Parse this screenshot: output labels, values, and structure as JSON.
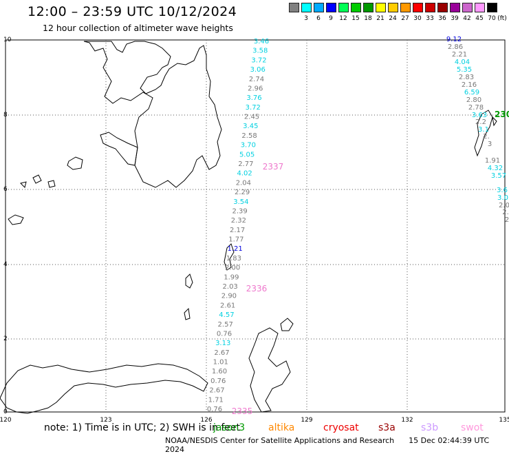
{
  "header": {
    "title": "12:00 – 23:59 UTC 10/12/2024",
    "subtitle": "12 hour collection of altimeter wave heights"
  },
  "legend": {
    "unit": "(ft)",
    "bins": [
      {
        "label": "",
        "color": "#808080"
      },
      {
        "label": "3",
        "color": "#00ffff"
      },
      {
        "label": "6",
        "color": "#00aaff"
      },
      {
        "label": "9",
        "color": "#0000ff"
      },
      {
        "label": "12",
        "color": "#00ff55"
      },
      {
        "label": "15",
        "color": "#00cc00"
      },
      {
        "label": "18",
        "color": "#009900"
      },
      {
        "label": "21",
        "color": "#ffff00"
      },
      {
        "label": "24",
        "color": "#ffcc00"
      },
      {
        "label": "27",
        "color": "#ff9900"
      },
      {
        "label": "30",
        "color": "#ff0000"
      },
      {
        "label": "33",
        "color": "#cc0000"
      },
      {
        "label": "36",
        "color": "#990000"
      },
      {
        "label": "39",
        "color": "#990099"
      },
      {
        "label": "42",
        "color": "#cc66cc"
      },
      {
        "label": "45",
        "color": "#ff99ff"
      },
      {
        "label": "70",
        "color": "#000000"
      }
    ]
  },
  "axes": {
    "lat_ticks": [
      "10",
      "8",
      "6",
      "4",
      "2",
      "0"
    ],
    "lon_ticks": [
      "120",
      "123",
      "126",
      "129",
      "132",
      "135"
    ]
  },
  "map_colors": {
    "grey": "#777777",
    "cyan": "#00d0e0",
    "blue": "#0000dd",
    "green": "#009900",
    "pink": "#ee77cc"
  },
  "tracks": [
    {
      "id": "track-west",
      "labels": [
        {
          "v": "3.46",
          "c": "cyan"
        },
        {
          "v": "3.58",
          "c": "cyan"
        },
        {
          "v": "3.72",
          "c": "cyan"
        },
        {
          "v": "3.06",
          "c": "cyan"
        },
        {
          "v": "2.74",
          "c": "grey"
        },
        {
          "v": "2.96",
          "c": "grey"
        },
        {
          "v": "3.76",
          "c": "cyan"
        },
        {
          "v": "3.72",
          "c": "cyan"
        },
        {
          "v": "2.45",
          "c": "grey"
        },
        {
          "v": "3.45",
          "c": "cyan"
        },
        {
          "v": "2.58",
          "c": "grey"
        },
        {
          "v": "3.70",
          "c": "cyan"
        },
        {
          "v": "5.05",
          "c": "cyan"
        },
        {
          "v": "2.77",
          "c": "grey"
        },
        {
          "v": "4.02",
          "c": "cyan"
        },
        {
          "v": "2.04",
          "c": "grey"
        },
        {
          "v": "2.29",
          "c": "grey"
        },
        {
          "v": "3.54",
          "c": "cyan"
        },
        {
          "v": "2.39",
          "c": "grey"
        },
        {
          "v": "2.32",
          "c": "grey"
        },
        {
          "v": "2.17",
          "c": "grey"
        },
        {
          "v": "1.77",
          "c": "grey"
        },
        {
          "v": "1.21",
          "c": "blue"
        },
        {
          "v": "1.83",
          "c": "grey"
        },
        {
          "v": "2.00",
          "c": "grey"
        },
        {
          "v": "1.99",
          "c": "grey"
        },
        {
          "v": "2.03",
          "c": "grey"
        },
        {
          "v": "2.90",
          "c": "grey"
        },
        {
          "v": "2.61",
          "c": "grey"
        },
        {
          "v": "4.57",
          "c": "cyan"
        },
        {
          "v": "2.57",
          "c": "grey"
        },
        {
          "v": "0.76",
          "c": "grey"
        },
        {
          "v": "3.13",
          "c": "cyan"
        },
        {
          "v": "2.67",
          "c": "grey"
        },
        {
          "v": "1.01",
          "c": "grey"
        },
        {
          "v": "1.60",
          "c": "grey"
        },
        {
          "v": "0.76",
          "c": "grey"
        },
        {
          "v": "2.67",
          "c": "grey"
        },
        {
          "v": "1.71",
          "c": "grey"
        },
        {
          "v": "0.76",
          "c": "grey"
        }
      ],
      "time_labels": [
        {
          "v": "2337",
          "c": "pink"
        },
        {
          "v": "2336",
          "c": "pink"
        },
        {
          "v": "2335",
          "c": "pink"
        }
      ]
    },
    {
      "id": "track-east",
      "labels": [
        {
          "v": "9.12",
          "c": "blue"
        },
        {
          "v": "2.86",
          "c": "grey"
        },
        {
          "v": "2.21",
          "c": "grey"
        },
        {
          "v": "4.04",
          "c": "cyan"
        },
        {
          "v": "5.35",
          "c": "cyan"
        },
        {
          "v": "2.83",
          "c": "grey"
        },
        {
          "v": "2.16",
          "c": "grey"
        },
        {
          "v": "6.59",
          "c": "cyan"
        },
        {
          "v": "2.80",
          "c": "grey"
        },
        {
          "v": "2.78",
          "c": "grey"
        },
        {
          "v": "3.63",
          "c": "cyan"
        },
        {
          "v": "2.2",
          "c": "grey"
        },
        {
          "v": "3.1",
          "c": "cyan"
        },
        {
          "v": "2.",
          "c": "grey"
        },
        {
          "v": "3",
          "c": "grey"
        },
        {
          "v": "1.91",
          "c": "grey"
        },
        {
          "v": "4.32",
          "c": "cyan"
        },
        {
          "v": "3.57",
          "c": "cyan"
        },
        {
          "v": "3.6",
          "c": "cyan"
        },
        {
          "v": "3.0",
          "c": "cyan"
        },
        {
          "v": "2.0",
          "c": "grey"
        },
        {
          "v": "2.",
          "c": "grey"
        },
        {
          "v": "2",
          "c": "grey"
        }
      ],
      "time_labels": [
        {
          "v": "230",
          "c": "green"
        }
      ]
    }
  ],
  "note": {
    "prefix": "note:  1) Time is in UTC;  2) SWH is in feet",
    "missions": [
      {
        "name": "jason3",
        "color": "#009900"
      },
      {
        "name": "altika",
        "color": "#ff8800"
      },
      {
        "name": "cryosat",
        "color": "#ee0000"
      },
      {
        "name": "s3a",
        "color": "#990000"
      },
      {
        "name": "s3b",
        "color": "#cc99ff"
      },
      {
        "name": "swot",
        "color": "#ff99dd"
      }
    ]
  },
  "footer": {
    "credit": "NOAA/NESDIS Center for Satellite Applications and Research",
    "generated": "15 Dec 02:44:39 UTC 2024"
  }
}
